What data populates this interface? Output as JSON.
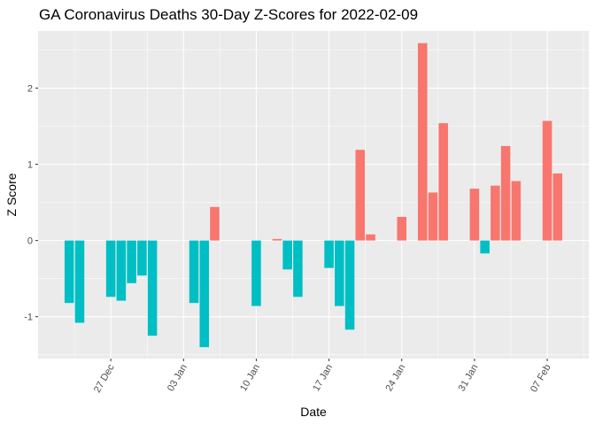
{
  "chart_data": {
    "type": "bar",
    "title": "GA Coronavirus Deaths 30-Day Z-Scores for 2022-02-09",
    "xlabel": "Date",
    "ylabel": "Z Score",
    "x_tick_labels": [
      "27 Dec",
      "03 Jan",
      "10 Jan",
      "17 Jan",
      "24 Jan",
      "31 Jan",
      "07 Feb"
    ],
    "x_tick_dates": [
      "2021-12-27",
      "2022-01-03",
      "2022-01-10",
      "2022-01-17",
      "2022-01-24",
      "2022-01-31",
      "2022-02-07"
    ],
    "y_ticks": [
      -1,
      0,
      1,
      2
    ],
    "xlim": [
      "2021-12-20",
      "2022-02-11"
    ],
    "ylim": [
      -1.55,
      2.75
    ],
    "grid": true,
    "colors": {
      "positive": "#F8766D",
      "negative": "#00BFC4",
      "panel": "#EBEBEB",
      "grid": "#FFFFFF"
    },
    "points": [
      {
        "date": "2021-12-23",
        "value": -0.82
      },
      {
        "date": "2021-12-24",
        "value": -1.08
      },
      {
        "date": "2021-12-27",
        "value": -0.74
      },
      {
        "date": "2021-12-28",
        "value": -0.79
      },
      {
        "date": "2021-12-29",
        "value": -0.56
      },
      {
        "date": "2021-12-30",
        "value": -0.46
      },
      {
        "date": "2021-12-31",
        "value": -1.25
      },
      {
        "date": "2022-01-04",
        "value": -0.82
      },
      {
        "date": "2022-01-05",
        "value": -1.4
      },
      {
        "date": "2022-01-06",
        "value": 0.44
      },
      {
        "date": "2022-01-10",
        "value": -0.86
      },
      {
        "date": "2022-01-12",
        "value": 0.02
      },
      {
        "date": "2022-01-13",
        "value": -0.38
      },
      {
        "date": "2022-01-14",
        "value": -0.74
      },
      {
        "date": "2022-01-17",
        "value": -0.36
      },
      {
        "date": "2022-01-18",
        "value": -0.86
      },
      {
        "date": "2022-01-19",
        "value": -1.17
      },
      {
        "date": "2022-01-20",
        "value": 1.19
      },
      {
        "date": "2022-01-21",
        "value": 0.08
      },
      {
        "date": "2022-01-24",
        "value": 0.31
      },
      {
        "date": "2022-01-26",
        "value": 2.59
      },
      {
        "date": "2022-01-27",
        "value": 0.63
      },
      {
        "date": "2022-01-28",
        "value": 1.54
      },
      {
        "date": "2022-01-31",
        "value": 0.68
      },
      {
        "date": "2022-02-01",
        "value": -0.17
      },
      {
        "date": "2022-02-02",
        "value": 0.72
      },
      {
        "date": "2022-02-03",
        "value": 1.24
      },
      {
        "date": "2022-02-04",
        "value": 0.78
      },
      {
        "date": "2022-02-07",
        "value": 1.57
      },
      {
        "date": "2022-02-08",
        "value": 0.88
      }
    ]
  }
}
